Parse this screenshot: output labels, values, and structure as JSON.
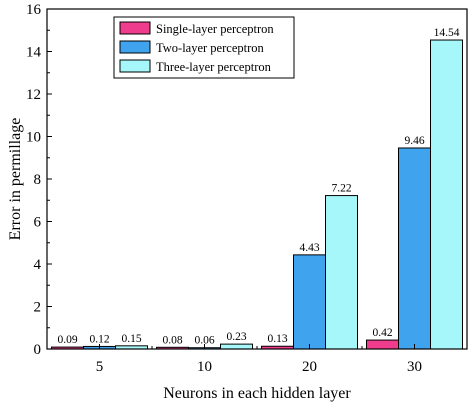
{
  "chart_data": {
    "type": "bar",
    "title": "",
    "xlabel": "Neurons in each hidden layer",
    "ylabel": "Error in permillage",
    "categories": [
      "5",
      "10",
      "20",
      "30"
    ],
    "ylim": [
      0,
      16
    ],
    "yticks": [
      0,
      2,
      4,
      6,
      8,
      10,
      12,
      14,
      16
    ],
    "series": [
      {
        "name": "Single-layer perceptron",
        "color": "#f03c8c",
        "values": [
          0.09,
          0.08,
          0.13,
          0.42
        ],
        "labels": [
          "0.09",
          "0.08",
          "0.13",
          "0.42"
        ]
      },
      {
        "name": "Two-layer perceptron",
        "color": "#3fa3ee",
        "values": [
          0.12,
          0.06,
          4.43,
          9.46
        ],
        "labels": [
          "0.12",
          "0.06",
          "4.43",
          "9.46"
        ]
      },
      {
        "name": "Three-layer perceptron",
        "color": "#a6f7f9",
        "values": [
          0.15,
          0.23,
          7.22,
          14.54
        ],
        "labels": [
          "0.15",
          "0.23",
          "7.22",
          "14.54"
        ]
      }
    ],
    "legend_position": "top-left",
    "grid": false
  }
}
